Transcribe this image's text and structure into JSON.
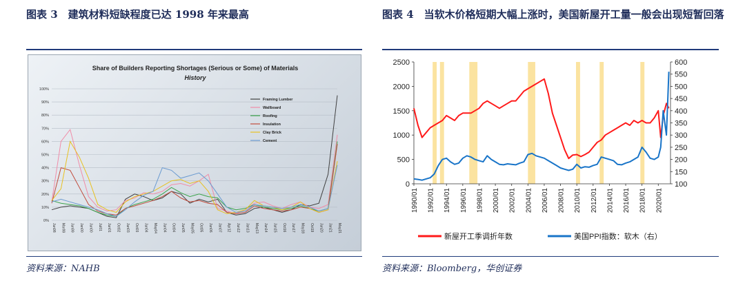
{
  "left": {
    "title": "图表 3　建筑材料短缺程度已达 1998 年来最高",
    "source": "资料来源：NAHB"
  },
  "right": {
    "title": "图表 4　当软木价格短期大幅上涨时，美国新屋开工量一般会出现短暂回落",
    "source": "资料来源：Bloomberg，华创证券"
  },
  "chart_data": [
    {
      "type": "line",
      "title": "Share of Builders Reporting Shortages (Serious or Some) of Materials",
      "subtitle": "History",
      "y_ticks": [
        "100%",
        "90%",
        "80%",
        "70%",
        "60%",
        "50%",
        "40%",
        "30%",
        "20%",
        "10%",
        "0%"
      ],
      "ylim": [
        0,
        100
      ],
      "categories": [
        "Jun98",
        "Mar99",
        "Jun99",
        "Jan00",
        "Jun00",
        "Jul01",
        "Jun01",
        "Oct02",
        "Jun03",
        "Oct03",
        "Jun04",
        "May04",
        "Jun04b",
        "Oct04",
        "Jun05",
        "May05",
        "Oct05",
        "Jun06",
        "Jan07",
        "Apr12",
        "Jun12",
        "Jan13",
        "May13",
        "Jun14",
        "Jun15",
        "Oct16",
        "Jun17",
        "May18",
        "Oct19",
        "Jun20",
        "Jan21",
        "May21"
      ],
      "x_labels": [
        "Jun98",
        "Mar99",
        "Jun99",
        "Jan00",
        "Jun00",
        "Jul01",
        "Jun01",
        "Oct02",
        "Jun03",
        "Oct03",
        "Jun04",
        "May04",
        "Jun04",
        "Oct04",
        "Jun05",
        "May05",
        "Oct05",
        "Jun06",
        "Jan07",
        "Apr12",
        "Jun12",
        "Jan13",
        "May13",
        "Jun14",
        "Jun15",
        "Oct16",
        "Jun17",
        "May18",
        "Oct19",
        "Jun20",
        "Jan21",
        "May21"
      ],
      "legend_position": "top-right",
      "series": [
        {
          "name": "Framing Lumber",
          "color": "#404040",
          "values": [
            8,
            10,
            11,
            10,
            9,
            6,
            3,
            2,
            16,
            20,
            18,
            15,
            17,
            22,
            20,
            13,
            16,
            14,
            16,
            6,
            4,
            5,
            9,
            10,
            8,
            6,
            8,
            12,
            11,
            13,
            35,
            95
          ]
        },
        {
          "name": "Wallboard",
          "color": "#f08ca8",
          "values": [
            14,
            60,
            69,
            42,
            18,
            10,
            7,
            8,
            15,
            17,
            21,
            20,
            22,
            27,
            28,
            26,
            30,
            35,
            9,
            7,
            5,
            8,
            13,
            14,
            11,
            9,
            12,
            14,
            10,
            9,
            12,
            65
          ]
        },
        {
          "name": "Roofing",
          "color": "#3aa34a",
          "values": [
            15,
            13,
            12,
            11,
            9,
            6,
            4,
            3,
            9,
            12,
            14,
            16,
            20,
            25,
            21,
            18,
            20,
            18,
            17,
            10,
            8,
            9,
            12,
            10,
            9,
            8,
            9,
            11,
            9,
            7,
            9,
            60
          ]
        },
        {
          "name": "Insulation",
          "color": "#c04a3a",
          "values": [
            13,
            40,
            38,
            25,
            12,
            7,
            5,
            4,
            9,
            11,
            13,
            15,
            18,
            22,
            17,
            14,
            15,
            13,
            12,
            6,
            5,
            6,
            11,
            9,
            8,
            7,
            8,
            10,
            9,
            6,
            8,
            58
          ]
        },
        {
          "name": "Clay Brick",
          "color": "#e8c020",
          "values": [
            15,
            24,
            60,
            48,
            32,
            12,
            8,
            6,
            14,
            18,
            20,
            22,
            26,
            30,
            31,
            28,
            30,
            22,
            8,
            5,
            6,
            8,
            15,
            11,
            10,
            8,
            10,
            14,
            9,
            6,
            8,
            45
          ]
        },
        {
          "name": "Cement",
          "color": "#6a9ad0",
          "values": [
            14,
            16,
            14,
            12,
            10,
            8,
            5,
            3,
            8,
            14,
            19,
            22,
            40,
            38,
            32,
            34,
            36,
            30,
            20,
            10,
            6,
            7,
            12,
            11,
            10,
            9,
            10,
            12,
            10,
            7,
            9,
            42
          ]
        }
      ]
    },
    {
      "type": "line",
      "x_labels": [
        "1990/01",
        "1992/01",
        "1994/01",
        "1996/01",
        "1998/01",
        "2000/01",
        "2002/01",
        "2004/01",
        "2006/01",
        "2008/01",
        "2010/01",
        "2012/01",
        "2014/01",
        "2016/01",
        "2018/01",
        "2020/01"
      ],
      "xlim": [
        1990,
        2021.5
      ],
      "y_left": {
        "ticks": [
          "0",
          "500",
          "1000",
          "1500",
          "2000",
          "2500"
        ],
        "ylim": [
          0,
          2500
        ]
      },
      "y_right": {
        "ticks": [
          "100",
          "150",
          "200",
          "250",
          "300",
          "350",
          "400",
          "450",
          "500",
          "550",
          "600"
        ],
        "ylim": [
          100,
          600
        ]
      },
      "highlight_color": "#fbe3a0",
      "highlight_periods": [
        [
          1992.3,
          1992.8
        ],
        [
          1993.2,
          1993.7
        ],
        [
          1996.8,
          1997.8
        ],
        [
          2004.0,
          2004.9
        ],
        [
          2009.9,
          2010.4
        ],
        [
          2012.8,
          2013.3
        ],
        [
          2017.8,
          2018.3
        ]
      ],
      "series": [
        {
          "name": "新屋开工季调折年数",
          "axis": "left",
          "color": "#ff1a1a",
          "x": [
            1990,
            1990.5,
            1991,
            1991.5,
            1992,
            1992.5,
            1993,
            1993.5,
            1994,
            1994.5,
            1995,
            1995.5,
            1996,
            1996.5,
            1997,
            1997.5,
            1998,
            1998.5,
            1999,
            1999.5,
            2000,
            2000.5,
            2001,
            2001.5,
            2002,
            2002.5,
            2003,
            2003.5,
            2004,
            2004.5,
            2005,
            2005.5,
            2006,
            2006.5,
            2007,
            2007.5,
            2008,
            2008.5,
            2009,
            2009.5,
            2010,
            2010.5,
            2011,
            2011.5,
            2012,
            2012.5,
            2013,
            2013.5,
            2014,
            2014.5,
            2015,
            2015.5,
            2016,
            2016.5,
            2017,
            2017.5,
            2018,
            2018.5,
            2019,
            2019.5,
            2020,
            2020.3,
            2020.6,
            2021,
            2021.3
          ],
          "y": [
            1550,
            1200,
            950,
            1050,
            1150,
            1200,
            1250,
            1300,
            1400,
            1350,
            1300,
            1400,
            1450,
            1450,
            1450,
            1500,
            1550,
            1650,
            1700,
            1650,
            1600,
            1550,
            1600,
            1650,
            1700,
            1700,
            1800,
            1900,
            1950,
            2000,
            2050,
            2100,
            2150,
            1850,
            1450,
            1200,
            950,
            700,
            520,
            590,
            600,
            560,
            600,
            650,
            750,
            850,
            900,
            1000,
            1050,
            1100,
            1150,
            1200,
            1250,
            1200,
            1300,
            1250,
            1300,
            1250,
            1250,
            1350,
            1500,
            950,
            1400,
            1650,
            1550
          ]
        },
        {
          "name": "美国PPI指数：软木（右）",
          "axis": "right",
          "color": "#1874c8",
          "x": [
            1990,
            1990.5,
            1991,
            1991.5,
            1992,
            1992.5,
            1993,
            1993.5,
            1994,
            1994.5,
            1995,
            1995.5,
            1996,
            1996.5,
            1997,
            1997.5,
            1998,
            1998.5,
            1999,
            1999.5,
            2000,
            2000.5,
            2001,
            2001.5,
            2002,
            2002.5,
            2003,
            2003.5,
            2004,
            2004.5,
            2005,
            2005.5,
            2006,
            2006.5,
            2007,
            2007.5,
            2008,
            2008.5,
            2009,
            2009.5,
            2010,
            2010.5,
            2011,
            2011.5,
            2012,
            2012.5,
            2013,
            2013.5,
            2014,
            2014.5,
            2015,
            2015.5,
            2016,
            2016.5,
            2017,
            2017.5,
            2018,
            2018.5,
            2019,
            2019.5,
            2020,
            2020.3,
            2020.6,
            2021,
            2021.3
          ],
          "y": [
            120,
            118,
            115,
            120,
            125,
            140,
            175,
            200,
            205,
            190,
            180,
            185,
            205,
            215,
            210,
            200,
            195,
            190,
            215,
            200,
            190,
            180,
            178,
            182,
            180,
            178,
            185,
            190,
            220,
            225,
            215,
            210,
            205,
            195,
            185,
            175,
            165,
            160,
            155,
            160,
            180,
            165,
            170,
            168,
            175,
            180,
            210,
            205,
            200,
            195,
            180,
            178,
            185,
            190,
            200,
            210,
            250,
            230,
            205,
            200,
            210,
            250,
            400,
            300,
            560
          ]
        }
      ]
    }
  ]
}
